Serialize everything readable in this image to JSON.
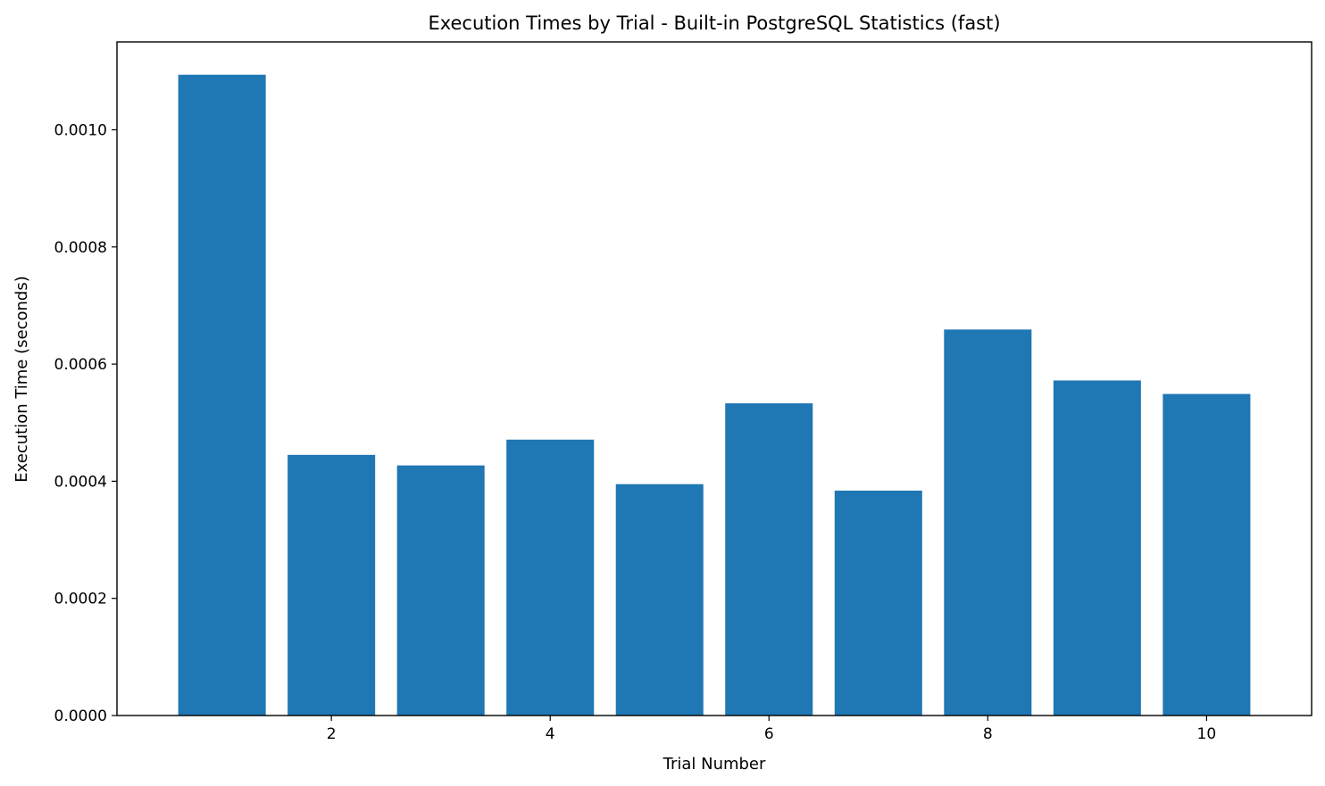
{
  "chart_data": {
    "type": "bar",
    "title": "Execution Times by Trial - Built-in PostgreSQL Statistics (fast)",
    "xlabel": "Trial Number",
    "ylabel": "Execution Time (seconds)",
    "x": [
      1,
      2,
      3,
      4,
      5,
      6,
      7,
      8,
      9,
      10
    ],
    "values": [
      0.001094,
      0.000445,
      0.000427,
      0.000471,
      0.000395,
      0.000533,
      0.000384,
      0.000659,
      0.000572,
      0.000549
    ],
    "bar_color": "#1f77b4",
    "xlim": [
      0.04,
      10.96
    ],
    "ylim": [
      0,
      0.00115
    ],
    "x_ticks": [
      2,
      4,
      6,
      8,
      10
    ],
    "x_tick_labels": [
      "2",
      "4",
      "6",
      "8",
      "10"
    ],
    "y_ticks": [
      0,
      0.0002,
      0.0004,
      0.0006,
      0.0008,
      0.001
    ],
    "y_tick_labels": [
      "0.0000",
      "0.0002",
      "0.0004",
      "0.0006",
      "0.0008",
      "0.0010"
    ],
    "grid": false,
    "legend": "none"
  }
}
